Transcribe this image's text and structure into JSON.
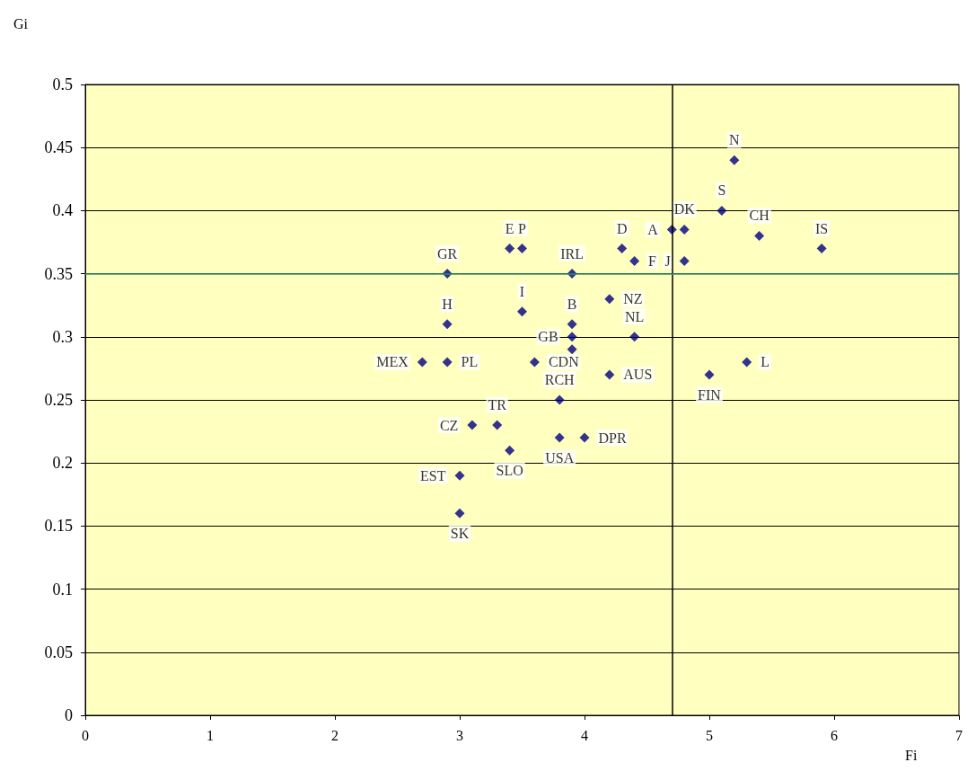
{
  "chart_data": {
    "type": "scatter",
    "xlabel": "Fi",
    "ylabel": "Gi",
    "x": [
      5.2,
      5.1,
      4.8,
      4.7,
      5.4,
      5.9,
      4.8,
      4.4,
      4.3,
      3.4,
      3.5,
      2.9,
      3.9,
      4.2,
      3.5,
      2.9,
      3.9,
      3.9,
      3.9,
      4.4,
      2.7,
      2.9,
      3.6,
      4.2,
      5.0,
      5.3,
      3.8,
      3.1,
      3.3,
      3.8,
      4.0,
      3.4,
      3.0,
      3.0
    ],
    "values": [
      0.44,
      0.4,
      0.385,
      0.385,
      0.38,
      0.37,
      0.36,
      0.36,
      0.37,
      0.37,
      0.37,
      0.35,
      0.35,
      0.33,
      0.32,
      0.31,
      0.31,
      0.3,
      0.29,
      0.3,
      0.28,
      0.28,
      0.28,
      0.27,
      0.27,
      0.28,
      0.25,
      0.23,
      0.23,
      0.22,
      0.22,
      0.21,
      0.19,
      0.16
    ],
    "value_labels": [
      "N",
      "S",
      "DK",
      "A",
      "CH",
      "IS",
      "J",
      "F",
      "D",
      "E",
      "P",
      "GR",
      "IRL",
      "NZ",
      "I",
      "H",
      "B",
      "GB",
      null,
      "NL",
      "MEX",
      "PL",
      "CDN",
      "AUS",
      "FIN",
      "L",
      "RCH",
      "CZ",
      "TR",
      "USA",
      "DPR",
      "SLO",
      "EST",
      "SK"
    ],
    "color": "#000080",
    "marker": "diamond",
    "xlim": [
      0,
      7
    ],
    "xticks": [
      0,
      1,
      2,
      3,
      4,
      5,
      6,
      7
    ],
    "ylim": [
      0,
      0.5
    ],
    "yticks": [
      0,
      0.05,
      0.1,
      0.15,
      0.2,
      0.25,
      0.3,
      0.35,
      0.4,
      0.45,
      0.5
    ],
    "grid": "y",
    "ref_lines": [
      {
        "axis": "x",
        "value": 4.7,
        "color": "#000000"
      },
      {
        "axis": "y",
        "value": 0.35,
        "color": "#339966"
      }
    ]
  }
}
